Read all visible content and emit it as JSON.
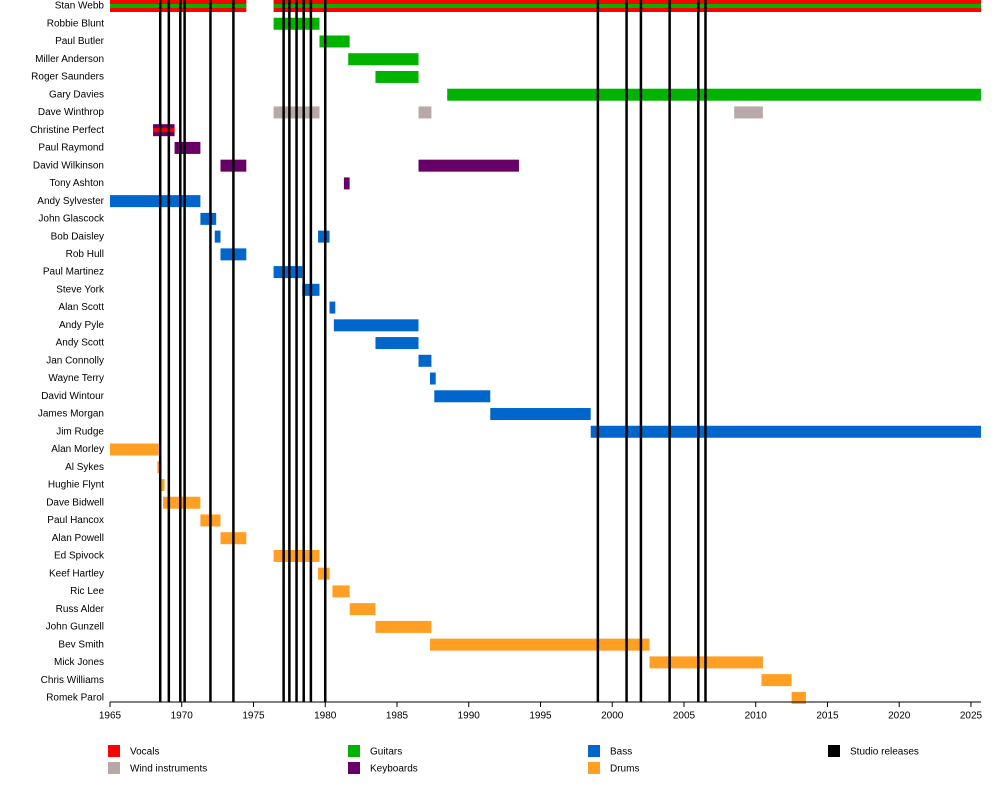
{
  "chart_data": {
    "type": "timeline",
    "xlim": [
      1965,
      2025.7
    ],
    "xticks": [
      1965,
      1970,
      1975,
      1980,
      1985,
      1990,
      1995,
      2000,
      2005,
      2010,
      2015,
      2020,
      2025
    ],
    "series": [
      {
        "name": "Vocals",
        "color": "#ff0000"
      },
      {
        "name": "Guitars",
        "color": "#00b300"
      },
      {
        "name": "Bass",
        "color": "#0066cc"
      },
      {
        "name": "Studio releases",
        "color": "#000000"
      },
      {
        "name": "Wind instruments",
        "color": "#b8a8a8"
      },
      {
        "name": "Keyboards",
        "color": "#660066"
      },
      {
        "name": "Drums",
        "color": "#ffa024"
      }
    ],
    "releases": [
      1968.5,
      1969.1,
      1969.9,
      1970.2,
      1972.0,
      1973.6,
      1977.1,
      1977.5,
      1978.0,
      1978.5,
      1979.0,
      1980.0,
      1999.0,
      2001.0,
      2002.0,
      2004.0,
      2006.0,
      2006.5
    ],
    "members": [
      {
        "name": "Stan Webb",
        "spans": [
          {
            "roles": [
              "Vocals",
              "Guitars"
            ],
            "start": 1965,
            "end": 1974.5
          },
          {
            "roles": [
              "Vocals",
              "Guitars"
            ],
            "start": 1976.4,
            "end": 2025.7
          }
        ]
      },
      {
        "name": "Robbie Blunt",
        "spans": [
          {
            "roles": [
              "Guitars"
            ],
            "start": 1976.4,
            "end": 1979.6
          }
        ]
      },
      {
        "name": "Paul Butler",
        "spans": [
          {
            "roles": [
              "Guitars"
            ],
            "start": 1979.6,
            "end": 1981.7
          }
        ]
      },
      {
        "name": "Miller Anderson",
        "spans": [
          {
            "roles": [
              "Guitars"
            ],
            "start": 1981.6,
            "end": 1986.5
          }
        ]
      },
      {
        "name": "Roger Saunders",
        "spans": [
          {
            "roles": [
              "Guitars"
            ],
            "start": 1983.5,
            "end": 1986.5
          }
        ]
      },
      {
        "name": "Gary Davies",
        "spans": [
          {
            "roles": [
              "Guitars"
            ],
            "start": 1988.5,
            "end": 2025.7
          }
        ]
      },
      {
        "name": "Dave Winthrop",
        "spans": [
          {
            "roles": [
              "Wind instruments"
            ],
            "start": 1976.4,
            "end": 1979.6
          },
          {
            "roles": [
              "Wind instruments"
            ],
            "start": 1986.5,
            "end": 1987.4
          },
          {
            "roles": [
              "Wind instruments"
            ],
            "start": 2008.5,
            "end": 2010.5
          }
        ]
      },
      {
        "name": "Christine Perfect",
        "spans": [
          {
            "roles": [
              "Keyboards",
              "Vocals"
            ],
            "start": 1968.0,
            "end": 1969.5
          }
        ]
      },
      {
        "name": "Paul Raymond",
        "spans": [
          {
            "roles": [
              "Keyboards"
            ],
            "start": 1969.5,
            "end": 1971.3
          }
        ]
      },
      {
        "name": "David Wilkinson",
        "spans": [
          {
            "roles": [
              "Keyboards"
            ],
            "start": 1972.7,
            "end": 1974.5
          },
          {
            "roles": [
              "Keyboards"
            ],
            "start": 1986.5,
            "end": 1993.5
          }
        ]
      },
      {
        "name": "Tony Ashton",
        "spans": [
          {
            "roles": [
              "Keyboards"
            ],
            "start": 1981.3,
            "end": 1981.7
          }
        ]
      },
      {
        "name": "Andy Sylvester",
        "spans": [
          {
            "roles": [
              "Bass"
            ],
            "start": 1965,
            "end": 1971.3
          }
        ]
      },
      {
        "name": "John Glascock",
        "spans": [
          {
            "roles": [
              "Bass"
            ],
            "start": 1971.3,
            "end": 1972.4
          }
        ]
      },
      {
        "name": "Bob Daisley",
        "spans": [
          {
            "roles": [
              "Bass"
            ],
            "start": 1972.3,
            "end": 1972.7
          },
          {
            "roles": [
              "Bass"
            ],
            "start": 1979.5,
            "end": 1980.3
          }
        ]
      },
      {
        "name": "Rob Hull",
        "spans": [
          {
            "roles": [
              "Bass"
            ],
            "start": 1972.7,
            "end": 1974.5
          }
        ]
      },
      {
        "name": "Paul Martinez",
        "spans": [
          {
            "roles": [
              "Bass"
            ],
            "start": 1976.4,
            "end": 1978.4
          }
        ]
      },
      {
        "name": "Steve York",
        "spans": [
          {
            "roles": [
              "Bass"
            ],
            "start": 1978.4,
            "end": 1979.6
          }
        ]
      },
      {
        "name": "Alan Scott",
        "spans": [
          {
            "roles": [
              "Bass"
            ],
            "start": 1980.3,
            "end": 1980.7
          }
        ]
      },
      {
        "name": "Andy Pyle",
        "spans": [
          {
            "roles": [
              "Bass"
            ],
            "start": 1980.6,
            "end": 1986.5
          }
        ]
      },
      {
        "name": "Andy Scott",
        "spans": [
          {
            "roles": [
              "Bass"
            ],
            "start": 1983.5,
            "end": 1986.5
          }
        ]
      },
      {
        "name": "Jan Connolly",
        "spans": [
          {
            "roles": [
              "Bass"
            ],
            "start": 1986.5,
            "end": 1987.4
          }
        ]
      },
      {
        "name": "Wayne Terry",
        "spans": [
          {
            "roles": [
              "Bass"
            ],
            "start": 1987.3,
            "end": 1987.7
          }
        ]
      },
      {
        "name": "David Wintour",
        "spans": [
          {
            "roles": [
              "Bass"
            ],
            "start": 1987.6,
            "end": 1991.5
          }
        ]
      },
      {
        "name": "James Morgan",
        "spans": [
          {
            "roles": [
              "Bass"
            ],
            "start": 1991.5,
            "end": 1998.5
          }
        ]
      },
      {
        "name": "Jim Rudge",
        "spans": [
          {
            "roles": [
              "Bass"
            ],
            "start": 1998.5,
            "end": 2025.7
          }
        ]
      },
      {
        "name": "Alan Morley",
        "spans": [
          {
            "roles": [
              "Drums"
            ],
            "start": 1965,
            "end": 1968.4
          }
        ]
      },
      {
        "name": "Al Sykes",
        "spans": [
          {
            "roles": [
              "Drums"
            ],
            "start": 1968.3,
            "end": 1968.6
          }
        ]
      },
      {
        "name": "Hughie Flynt",
        "spans": [
          {
            "roles": [
              "Drums"
            ],
            "start": 1968.6,
            "end": 1968.8
          }
        ]
      },
      {
        "name": "Dave Bidwell",
        "spans": [
          {
            "roles": [
              "Drums"
            ],
            "start": 1968.7,
            "end": 1971.3
          }
        ]
      },
      {
        "name": "Paul Hancox",
        "spans": [
          {
            "roles": [
              "Drums"
            ],
            "start": 1971.3,
            "end": 1972.7
          }
        ]
      },
      {
        "name": "Alan Powell",
        "spans": [
          {
            "roles": [
              "Drums"
            ],
            "start": 1972.7,
            "end": 1974.5
          }
        ]
      },
      {
        "name": "Ed Spivock",
        "spans": [
          {
            "roles": [
              "Drums"
            ],
            "start": 1976.4,
            "end": 1979.6
          }
        ]
      },
      {
        "name": "Keef Hartley",
        "spans": [
          {
            "roles": [
              "Drums"
            ],
            "start": 1979.5,
            "end": 1980.3
          }
        ]
      },
      {
        "name": "Ric Lee",
        "spans": [
          {
            "roles": [
              "Drums"
            ],
            "start": 1980.5,
            "end": 1981.7
          }
        ]
      },
      {
        "name": "Russ Alder",
        "spans": [
          {
            "roles": [
              "Drums"
            ],
            "start": 1981.7,
            "end": 1983.5
          }
        ]
      },
      {
        "name": "John Gunzell",
        "spans": [
          {
            "roles": [
              "Drums"
            ],
            "start": 1983.5,
            "end": 1987.4
          }
        ]
      },
      {
        "name": "Bev Smith",
        "spans": [
          {
            "roles": [
              "Drums"
            ],
            "start": 1987.3,
            "end": 2002.6
          }
        ]
      },
      {
        "name": "Mick Jones",
        "spans": [
          {
            "roles": [
              "Drums"
            ],
            "start": 2002.6,
            "end": 2010.5
          }
        ]
      },
      {
        "name": "Chris Williams",
        "spans": [
          {
            "roles": [
              "Drums"
            ],
            "start": 2010.4,
            "end": 2012.5
          }
        ]
      },
      {
        "name": "Romek Parol",
        "spans": [
          {
            "roles": [
              "Drums"
            ],
            "start": 2012.5,
            "end": 2013.5
          }
        ]
      }
    ]
  }
}
